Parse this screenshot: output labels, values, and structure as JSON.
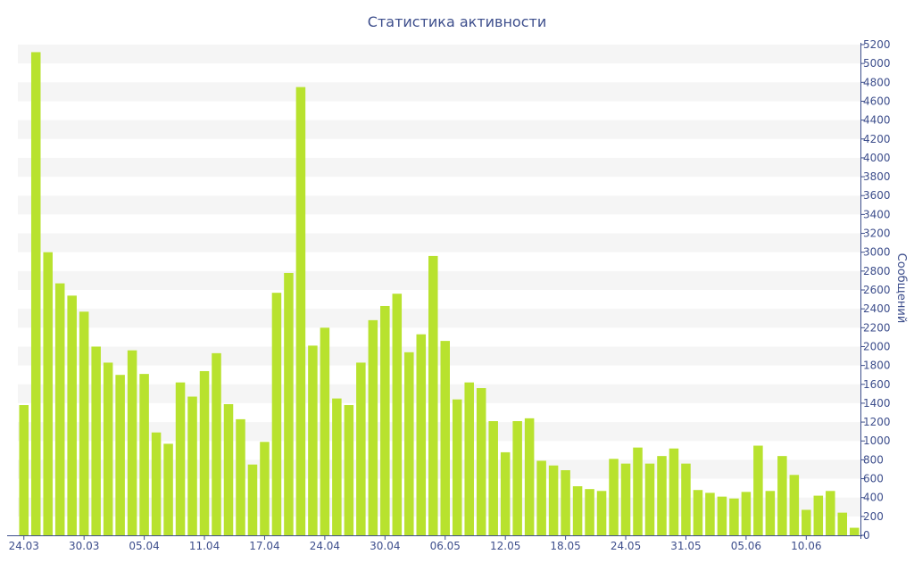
{
  "chart_data": {
    "type": "bar",
    "title": "Статистика активности",
    "ylabel": "Сообщений",
    "xlabel": "",
    "ylim": [
      0,
      5200
    ],
    "y_ticks": [
      0,
      200,
      400,
      600,
      800,
      1000,
      1200,
      1400,
      1600,
      1800,
      2000,
      2200,
      2400,
      2600,
      2800,
      3000,
      3200,
      3400,
      3600,
      3800,
      4000,
      4200,
      4400,
      4600,
      4800,
      5000,
      5200
    ],
    "x_tick_labels": [
      "24.03",
      "30.03",
      "05.04",
      "11.04",
      "17.04",
      "24.04",
      "30.04",
      "06.05",
      "12.05",
      "18.05",
      "24.05",
      "31.05",
      "05.06",
      "10.06"
    ],
    "x_tick_positions": [
      0,
      5,
      10,
      15,
      20,
      25,
      30,
      35,
      40,
      45,
      50,
      55,
      60,
      65
    ],
    "bar_color": "#b8e22e",
    "grid_band_color": "#f5f5f5",
    "text_color": "#3d4e8c",
    "axis_side": "right",
    "grid": true,
    "values": [
      1380,
      5120,
      3000,
      2670,
      2540,
      2370,
      2000,
      1830,
      1700,
      1960,
      1710,
      1090,
      970,
      1620,
      1470,
      1740,
      1930,
      1390,
      1230,
      750,
      990,
      2570,
      2780,
      4750,
      2010,
      2200,
      1450,
      1380,
      1830,
      2280,
      2430,
      2560,
      1940,
      2130,
      2960,
      2060,
      1440,
      1620,
      1560,
      1210,
      880,
      1210,
      1240,
      790,
      740,
      690,
      520,
      490,
      470,
      810,
      760,
      930,
      760,
      840,
      920,
      760,
      480,
      450,
      410,
      390,
      460,
      950,
      470,
      840,
      640,
      270,
      420,
      470,
      240,
      80
    ]
  }
}
